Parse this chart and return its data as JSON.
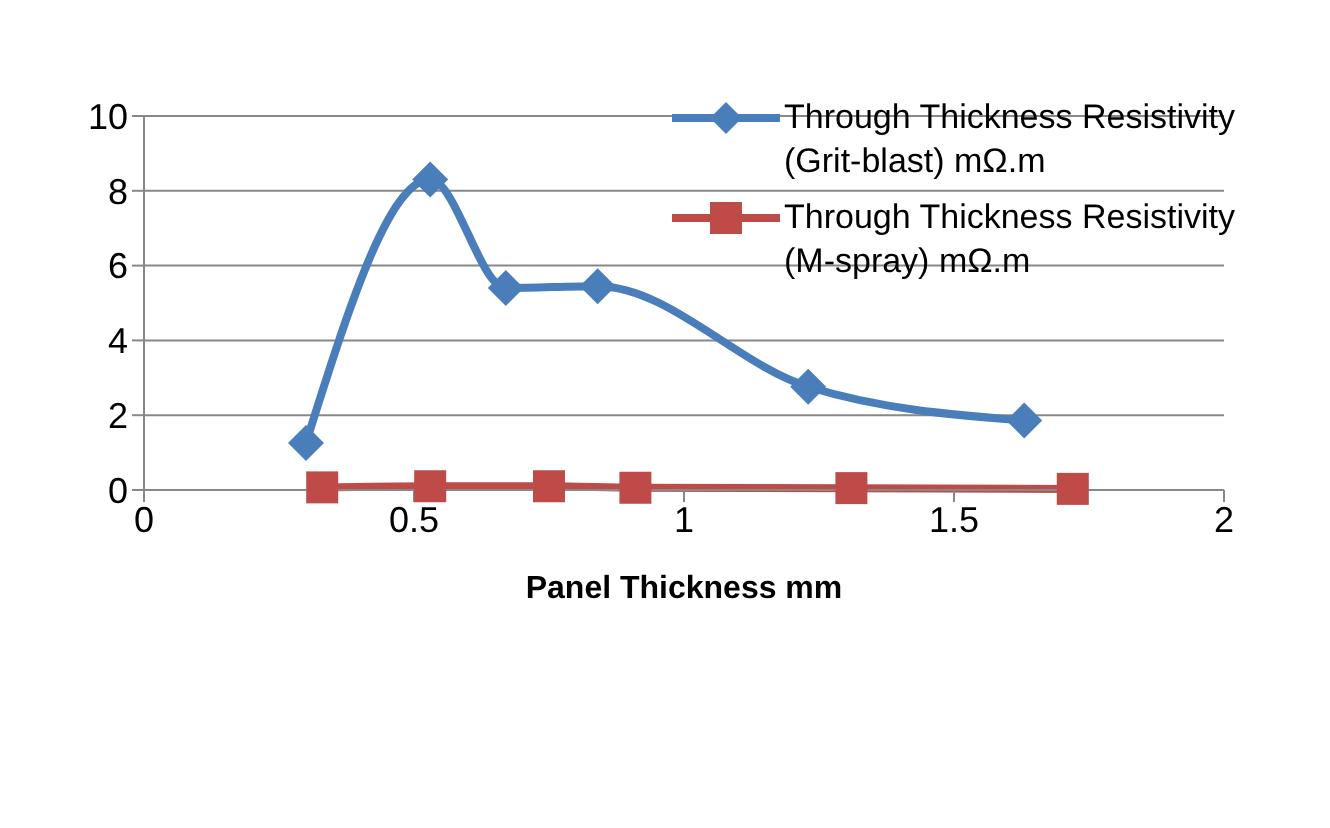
{
  "chart_data": {
    "type": "line",
    "xlabel": "Panel Thickness mm",
    "xlim": [
      0,
      2
    ],
    "xticks": [
      0,
      0.5,
      1,
      1.5,
      2
    ],
    "ylim": [
      0,
      10
    ],
    "yticks": [
      0,
      2,
      4,
      6,
      8,
      10
    ],
    "grid": "y",
    "legend": "top right",
    "series": [
      {
        "name": "Through Thickness Resistivity (Grit-blast) mΩ.m",
        "color": "#4a7ebb",
        "marker": "diamond",
        "x": [
          0.3,
          0.53,
          0.67,
          0.84,
          1.23,
          1.63
        ],
        "values": [
          1.26,
          8.3,
          5.4,
          5.45,
          2.76,
          1.86
        ]
      },
      {
        "name": "Through Thickness Resistivity (M-spray) mΩ.m",
        "color": "#be4b48",
        "marker": "square",
        "x": [
          0.33,
          0.53,
          0.75,
          0.91,
          1.31,
          1.72
        ],
        "values": [
          0.07,
          0.1,
          0.1,
          0.06,
          0.05,
          0.03
        ]
      }
    ]
  }
}
